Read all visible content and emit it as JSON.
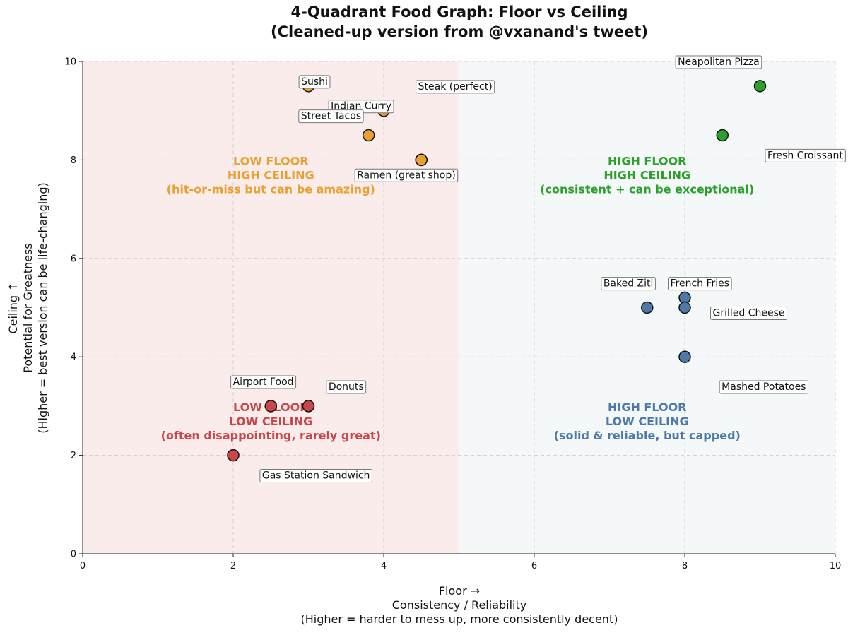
{
  "chart_data": {
    "type": "scatter",
    "title": [
      "4-Quadrant Food Graph: Floor vs Ceiling",
      "(Cleaned-up version from @vxanand's tweet)"
    ],
    "xlabel": [
      "Floor →",
      "Consistency / Reliability",
      "(Higher = harder to mess up, more consistently decent)"
    ],
    "ylabel": [
      "Ceiling ↑",
      "Potential for Greatness",
      "(Higher = best version can be life-changing)"
    ],
    "xlim": [
      0,
      10
    ],
    "ylim": [
      0,
      10
    ],
    "xticks": [
      "0",
      "2",
      "4",
      "6",
      "8",
      "10"
    ],
    "yticks": [
      "0",
      "2",
      "4",
      "6",
      "8",
      "10"
    ],
    "grid": true,
    "colors": {
      "low_high": "#e8a031",
      "high_high": "#2ca02c",
      "low_low": "#c8474b",
      "high_low": "#4e79a7",
      "left_bg": "#fbecec",
      "right_bg": "#f4f8f8"
    },
    "quadrant_labels": [
      {
        "key": "low_high",
        "lines": [
          "LOW FLOOR",
          "HIGH CEILING",
          "(hit-or-miss but can be amazing)"
        ],
        "x": 2.5,
        "y": 7.9
      },
      {
        "key": "high_high",
        "lines": [
          "HIGH FLOOR",
          "HIGH CEILING",
          "(consistent + can be exceptional)"
        ],
        "x": 7.5,
        "y": 7.9
      },
      {
        "key": "low_low",
        "lines": [
          "LOW FLOOR",
          "LOW CEILING",
          "(often disappointing, rarely great)"
        ],
        "x": 2.5,
        "y": 2.9
      },
      {
        "key": "high_low",
        "lines": [
          "HIGH FLOOR",
          "LOW CEILING",
          "(solid & reliable, but capped)"
        ],
        "x": 7.5,
        "y": 2.9
      }
    ],
    "points": [
      {
        "name": "Sushi",
        "x": 3.0,
        "y": 9.5,
        "group": "low_high",
        "lx": 3.08,
        "ly": 9.6
      },
      {
        "name": "Indian Curry",
        "x": 4.0,
        "y": 9.0,
        "group": "low_high",
        "lx": 3.7,
        "ly": 9.1
      },
      {
        "name": "Street Tacos",
        "x": 3.8,
        "y": 8.5,
        "group": "low_high",
        "lx": 3.3,
        "ly": 8.9
      },
      {
        "name": "Steak (perfect)",
        "x": 4.5,
        "y": 8.0,
        "group": "low_high",
        "lx": 4.95,
        "ly": 9.5
      },
      {
        "name": "Ramen (great shop)",
        "x": 4.5,
        "y": 8.0,
        "group": "low_high",
        "lx": 4.3,
        "ly": 7.7
      },
      {
        "name": "Neapolitan Pizza",
        "x": 9.0,
        "y": 9.5,
        "group": "high_high",
        "lx": 8.45,
        "ly": 10.0
      },
      {
        "name": "Fresh Croissant",
        "x": 8.5,
        "y": 8.5,
        "group": "high_high",
        "lx": 9.6,
        "ly": 8.1
      },
      {
        "name": "Baked Ziti",
        "x": 7.5,
        "y": 5.0,
        "group": "high_low",
        "lx": 7.25,
        "ly": 5.5
      },
      {
        "name": "French Fries",
        "x": 8.0,
        "y": 5.2,
        "group": "high_low",
        "lx": 8.2,
        "ly": 5.5
      },
      {
        "name": "Grilled Cheese",
        "x": 8.0,
        "y": 5.0,
        "group": "high_low",
        "lx": 8.85,
        "ly": 4.9
      },
      {
        "name": "Mashed Potatoes",
        "x": 8.0,
        "y": 4.0,
        "group": "high_low",
        "lx": 9.05,
        "ly": 3.4
      },
      {
        "name": "Airport Food",
        "x": 2.5,
        "y": 3.0,
        "group": "low_low",
        "lx": 2.4,
        "ly": 3.5
      },
      {
        "name": "Donuts",
        "x": 3.0,
        "y": 3.0,
        "group": "low_low",
        "lx": 3.5,
        "ly": 3.4
      },
      {
        "name": "Gas Station Sandwich",
        "x": 2.0,
        "y": 2.0,
        "group": "low_low",
        "lx": 3.1,
        "ly": 1.6
      }
    ]
  }
}
